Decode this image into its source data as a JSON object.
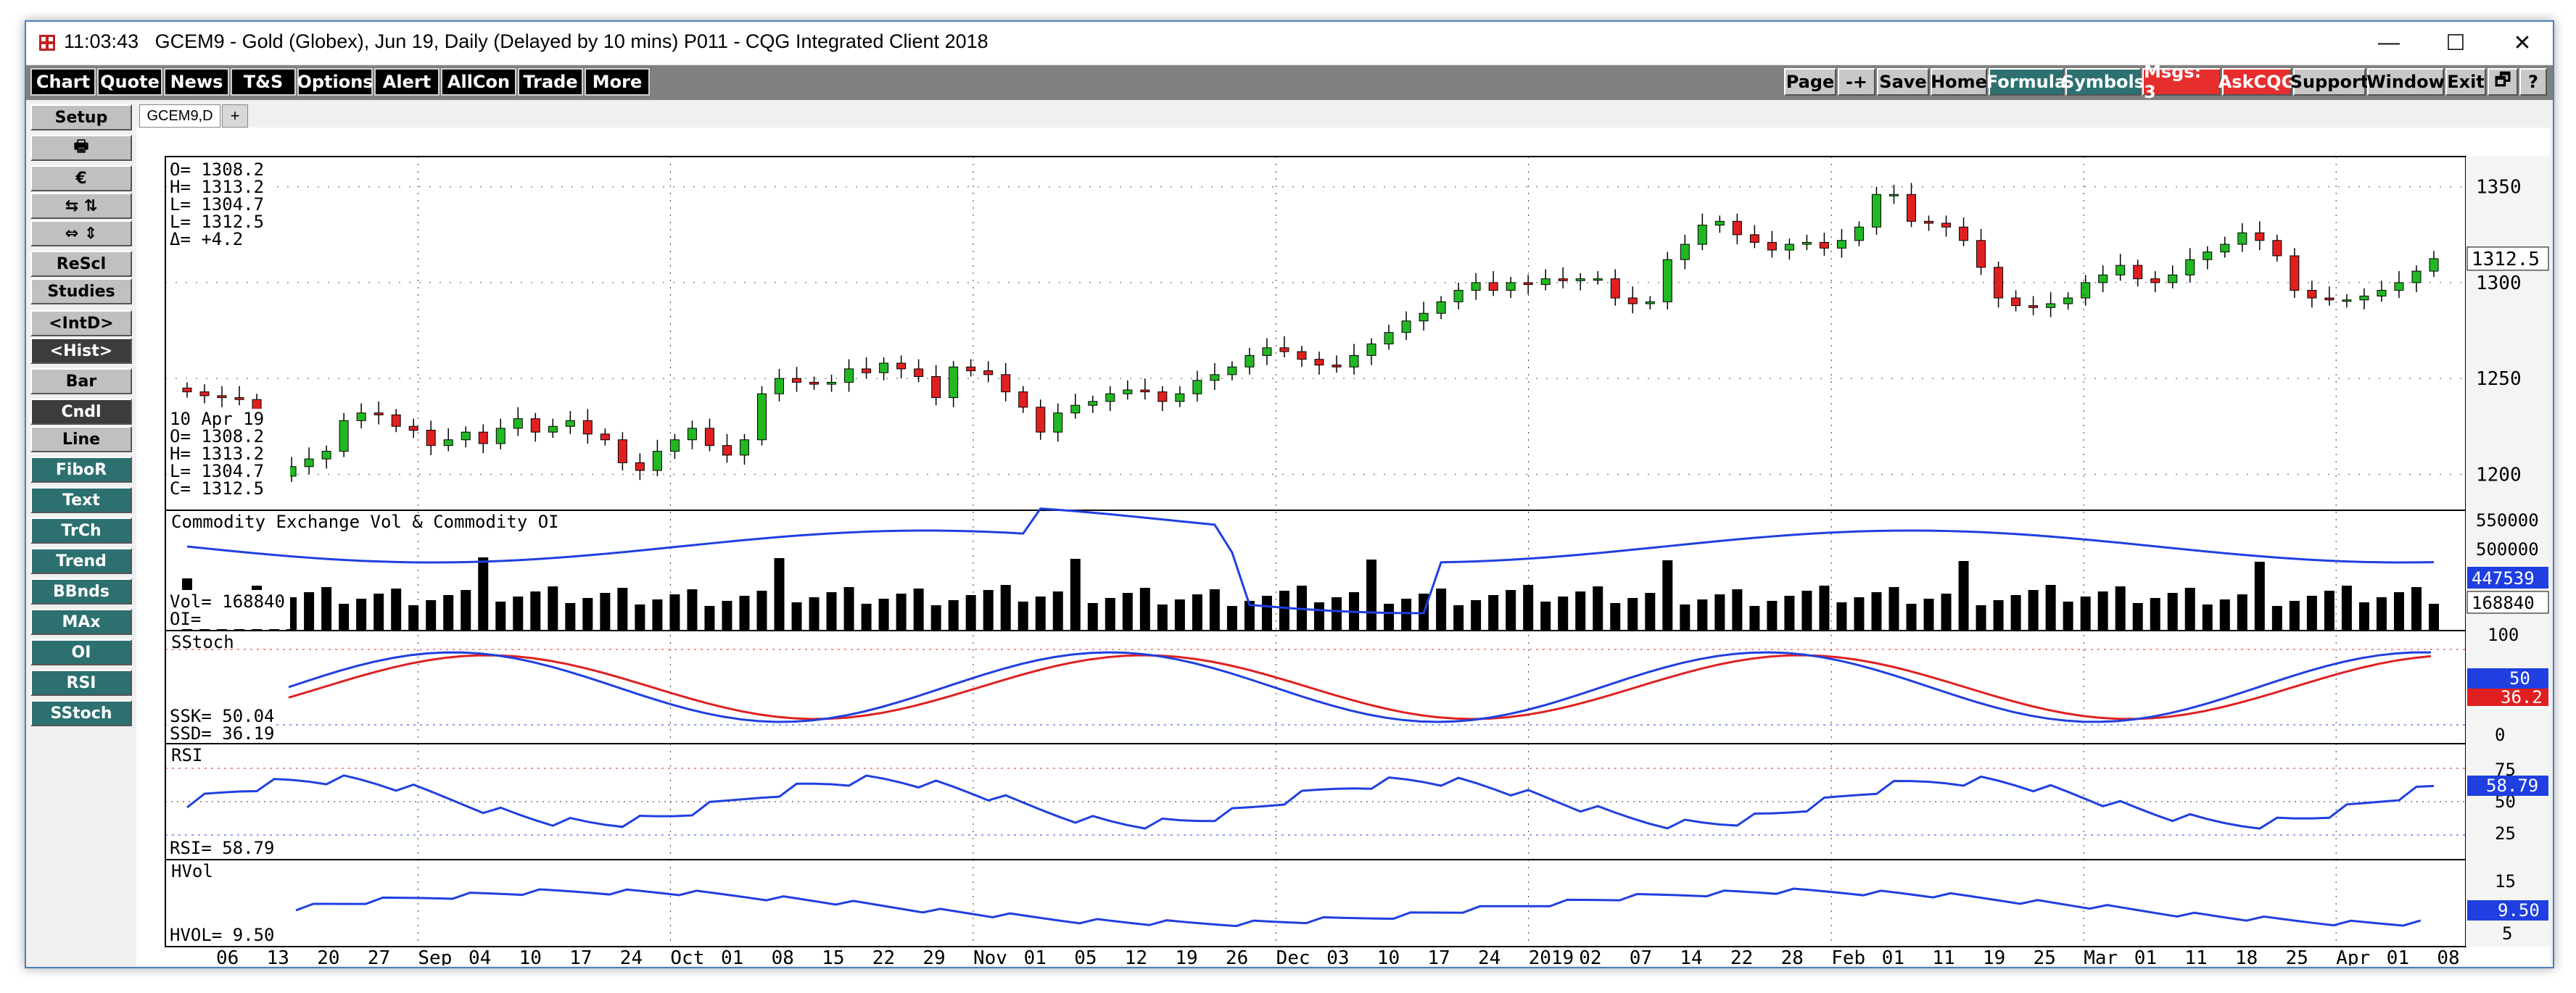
{
  "window": {
    "time": "11:03:43",
    "title": "GCEM9 - Gold (Globex), Jun 19, Daily (Delayed by 10 mins)   P011 - CQG Integrated Client 2018",
    "minimize": "—",
    "maximize": "☐",
    "close": "✕"
  },
  "menu_left": [
    "Chart",
    "Quote",
    "News",
    "T&S",
    "Options",
    "Alert",
    "AllCon",
    "Trade",
    "More"
  ],
  "menu_right": [
    {
      "label": "Page",
      "style": "gray"
    },
    {
      "label": "-+",
      "style": "gray"
    },
    {
      "label": "Save",
      "style": "gray"
    },
    {
      "label": "Home",
      "style": "gray"
    },
    {
      "label": "Formula",
      "style": "teal"
    },
    {
      "label": "Symbols",
      "style": "teal"
    },
    {
      "label": "Msgs: 3",
      "style": "red"
    },
    {
      "label": "AskCQG",
      "style": "red"
    },
    {
      "label": "Support",
      "style": "gray"
    },
    {
      "label": "Window",
      "style": "gray"
    },
    {
      "label": "Exit",
      "style": "gray"
    },
    {
      "label": "🗗",
      "style": "gray"
    },
    {
      "label": "?",
      "style": "gray"
    }
  ],
  "left_buttons": [
    {
      "label": "Setup",
      "style": "gray"
    },
    {
      "label": "🖶",
      "style": "gray"
    },
    {
      "label": "€",
      "style": "gray"
    },
    {
      "label": "⇆  ⇅",
      "style": "gray"
    },
    {
      "label": "⇔  ⇕",
      "style": "gray"
    },
    {
      "label": "ReScl",
      "style": "gray"
    },
    {
      "label": "Studies",
      "style": "gray"
    },
    {
      "label": "<IntD>",
      "style": "gray"
    },
    {
      "label": "<Hist>",
      "style": "dark"
    },
    {
      "label": "Bar",
      "style": "gray"
    },
    {
      "label": "Cndl",
      "style": "dark"
    },
    {
      "label": "Line",
      "style": "gray"
    },
    {
      "label": "FiboR",
      "style": "teal"
    },
    {
      "label": "Text",
      "style": "teal"
    },
    {
      "label": "TrCh",
      "style": "teal"
    },
    {
      "label": "Trend",
      "style": "teal"
    },
    {
      "label": "BBnds",
      "style": "teal"
    },
    {
      "label": "MAx",
      "style": "teal"
    },
    {
      "label": "OI",
      "style": "teal"
    },
    {
      "label": "RSI",
      "style": "teal"
    },
    {
      "label": "SStoch",
      "style": "teal"
    }
  ],
  "tabs": {
    "active": "GCEM9,D",
    "add": "+"
  },
  "quote_box": {
    "lines": [
      "O=  1308.2",
      "H=  1313.2",
      "L=  1304.7",
      "L=  1312.5",
      "Δ=    +4.2"
    ]
  },
  "bar_info": {
    "lines": [
      "10 Apr 19",
      "O=   1308.2",
      "H=   1313.2",
      "L=   1304.7",
      "C=   1312.5"
    ]
  },
  "colors": {
    "up_candle": "#22b822",
    "down_candle": "#e02020",
    "blue_line": "#1f3fe0",
    "red_line": "#e02020",
    "volume_bar": "#000000",
    "last_price_box": "#1f3fe0"
  },
  "chart_data": [
    {
      "type": "candlestick",
      "panel": "price",
      "ylim": [
        1185,
        1362
      ],
      "yticks": [
        1200,
        1250,
        1300,
        1350
      ],
      "last_value": "1312.5",
      "closes": [
        1243,
        1241,
        1240,
        1239,
        1215,
        1199,
        1204,
        1208,
        1212,
        1228,
        1232,
        1231,
        1225,
        1223,
        1215,
        1218,
        1222,
        1216,
        1224,
        1229,
        1222,
        1225,
        1228,
        1221,
        1218,
        1206,
        1202,
        1212,
        1218,
        1224,
        1215,
        1210,
        1218,
        1242,
        1250,
        1248,
        1247,
        1248,
        1255,
        1253,
        1258,
        1255,
        1251,
        1240,
        1256,
        1254,
        1252,
        1243,
        1235,
        1222,
        1232,
        1236,
        1238,
        1242,
        1244,
        1243,
        1238,
        1242,
        1249,
        1252,
        1256,
        1262,
        1266,
        1264,
        1260,
        1257,
        1256,
        1262,
        1268,
        1274,
        1280,
        1284,
        1290,
        1296,
        1300,
        1296,
        1300,
        1299,
        1302,
        1301,
        1302,
        1302,
        1292,
        1289,
        1290,
        1312,
        1320,
        1330,
        1332,
        1325,
        1321,
        1317,
        1320,
        1321,
        1318,
        1322,
        1329,
        1346,
        1346,
        1332,
        1331,
        1329,
        1322,
        1308,
        1292,
        1288,
        1287,
        1289,
        1292,
        1300,
        1304,
        1309,
        1302,
        1300,
        1304,
        1312,
        1316,
        1320,
        1326,
        1322,
        1314,
        1296,
        1292,
        1291,
        1291,
        1293,
        1296,
        1300,
        1306,
        1312.5
      ],
      "dates_axis": [
        "06",
        "13",
        "20",
        "27",
        "Sep",
        "04",
        "10",
        "17",
        "24",
        "Oct",
        "01",
        "08",
        "15",
        "22",
        "29",
        "Nov",
        "01",
        "05",
        "12",
        "19",
        "26",
        "Dec",
        "03",
        "10",
        "17",
        "24",
        "2019",
        "02",
        "07",
        "14",
        "22",
        "28",
        "Feb",
        "01",
        "11",
        "19",
        "25",
        "Mar",
        "01",
        "11",
        "18",
        "25",
        "Apr",
        "01",
        "08"
      ]
    },
    {
      "type": "bar+line",
      "panel": "volume",
      "title": "Commodity Exchange Vol & Commodity OI",
      "yticks": [
        "500000"
      ],
      "top_label": "550000",
      "vol_value": "168840",
      "oi_value": "447539",
      "vol_label": "Vol=",
      "oi_label": "OI=",
      "vol_current": "168840"
    },
    {
      "type": "line",
      "panel": "sstoch",
      "title": "SStoch",
      "yticks": [
        "100",
        "0"
      ],
      "ssk": "50.04",
      "ssd": "36.19",
      "ssk_label": "SSK=",
      "ssd_label": "SSD=",
      "last_k": "50",
      "last_d": "36.2"
    },
    {
      "type": "line",
      "panel": "rsi",
      "title": "RSI",
      "yticks": [
        "75",
        "50",
        "25"
      ],
      "rsi": "58.79",
      "rsi_label": "RSI=",
      "last": "58.79"
    },
    {
      "type": "line",
      "panel": "hvol",
      "title": "HVol",
      "yticks": [
        "15",
        "5"
      ],
      "hvol": "9.50",
      "hvol_label": "HVOL=",
      "last": "9.50"
    }
  ]
}
